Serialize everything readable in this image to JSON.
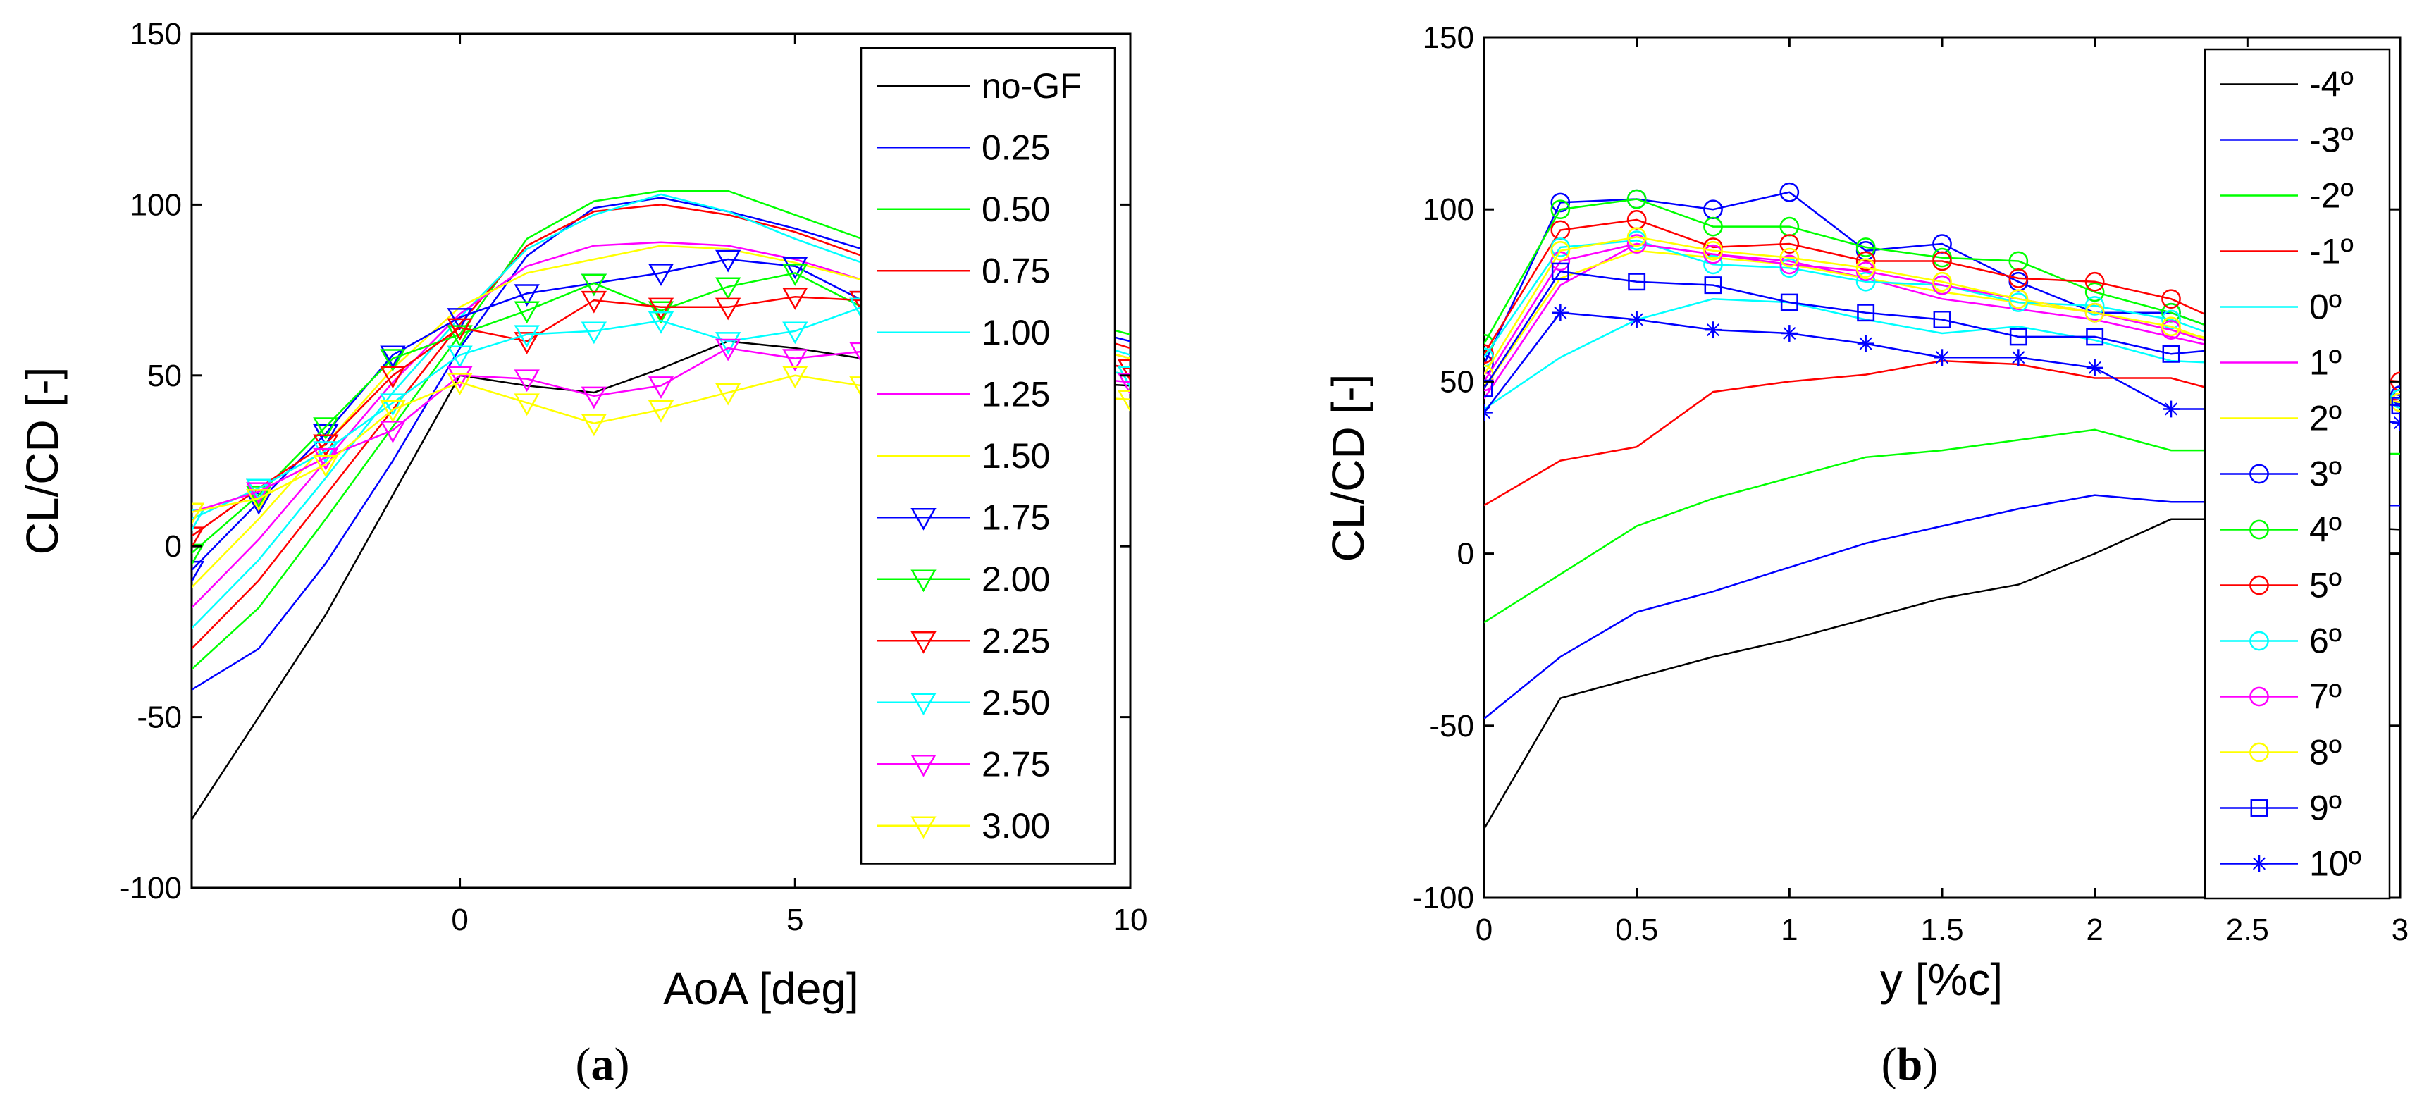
{
  "chart_data": [
    {
      "type": "line",
      "panel_label": "a",
      "xlabel": "AoA  [deg]",
      "ylabel": "CL/CD [-]",
      "xlim": [
        -4,
        10
      ],
      "ylim": [
        -100,
        150
      ],
      "xticks": [
        0,
        5,
        10
      ],
      "yticks": [
        -100,
        -50,
        0,
        50,
        100,
        150
      ],
      "x": [
        -4,
        -3,
        -2,
        -1,
        0,
        1,
        2,
        3,
        4,
        5,
        6,
        7,
        8,
        9,
        10
      ],
      "series": [
        {
          "name": "no-GF",
          "color": "#000000",
          "marker": "none",
          "values": [
            -80,
            -50,
            -20,
            15,
            50,
            47,
            45,
            52,
            60,
            58,
            55,
            52,
            50,
            48,
            47
          ]
        },
        {
          "name": "0.25",
          "color": "#0000ff",
          "marker": "none",
          "values": [
            -42,
            -30,
            -5,
            25,
            58,
            85,
            99,
            102,
            98,
            93,
            87,
            80,
            72,
            65,
            60
          ]
        },
        {
          "name": "0.50",
          "color": "#00ff00",
          "marker": "none",
          "values": [
            -36,
            -18,
            8,
            35,
            62,
            90,
            101,
            104,
            104,
            97,
            90,
            82,
            74,
            67,
            62
          ]
        },
        {
          "name": "0.75",
          "color": "#ff0000",
          "marker": "none",
          "values": [
            -30,
            -10,
            15,
            40,
            65,
            88,
            98,
            100,
            97,
            92,
            85,
            78,
            70,
            64,
            58
          ]
        },
        {
          "name": "1.00",
          "color": "#00ffff",
          "marker": "none",
          "values": [
            -24,
            -4,
            20,
            45,
            67,
            87,
            97,
            103,
            98,
            90,
            83,
            75,
            68,
            62,
            56
          ]
        },
        {
          "name": "1.25",
          "color": "#ff00ff",
          "marker": "none",
          "values": [
            -18,
            2,
            25,
            48,
            68,
            82,
            88,
            89,
            88,
            84,
            78,
            72,
            66,
            60,
            55
          ]
        },
        {
          "name": "1.50",
          "color": "#ffff00",
          "marker": "none",
          "values": [
            -12,
            8,
            30,
            52,
            70,
            80,
            84,
            88,
            87,
            83,
            78,
            72,
            66,
            60,
            55
          ]
        },
        {
          "name": "1.75",
          "color": "#0000ff",
          "marker": "triangle-down",
          "values": [
            -7,
            13,
            33,
            56,
            67,
            74,
            77,
            80,
            84,
            82,
            72,
            66,
            60,
            56,
            52
          ]
        },
        {
          "name": "2.00",
          "color": "#00ff00",
          "marker": "triangle-down",
          "values": [
            -2,
            15,
            35,
            55,
            62,
            69,
            77,
            69,
            76,
            80,
            70,
            64,
            58,
            54,
            50
          ]
        },
        {
          "name": "2.25",
          "color": "#ff0000",
          "marker": "triangle-down",
          "values": [
            3,
            17,
            30,
            50,
            64,
            60,
            72,
            70,
            70,
            73,
            72,
            66,
            60,
            56,
            52
          ]
        },
        {
          "name": "2.50",
          "color": "#00ffff",
          "marker": "triangle-down",
          "values": [
            8,
            17,
            28,
            42,
            56,
            62,
            63,
            66,
            60,
            63,
            70,
            64,
            58,
            54,
            50
          ]
        },
        {
          "name": "2.75",
          "color": "#ff00ff",
          "marker": "triangle-down",
          "values": [
            10,
            16,
            26,
            34,
            50,
            49,
            44,
            47,
            58,
            55,
            57,
            55,
            52,
            50,
            48
          ]
        },
        {
          "name": "3.00",
          "color": "#ffff00",
          "marker": "triangle-down",
          "values": [
            10,
            14,
            24,
            40,
            48,
            42,
            36,
            40,
            45,
            50,
            47,
            46,
            45,
            44,
            43
          ]
        }
      ]
    },
    {
      "type": "line",
      "panel_label": "b",
      "xlabel": "y  [%c]",
      "ylabel": "CL/CD [-]",
      "xlim": [
        0,
        3
      ],
      "ylim": [
        -100,
        150
      ],
      "xticks": [
        "0",
        "0.5",
        "1",
        "1.5",
        "2",
        "2.5",
        "3"
      ],
      "yticks": [
        -100,
        -50,
        0,
        50,
        100,
        150
      ],
      "x": [
        0,
        0.25,
        0.5,
        0.75,
        1,
        1.25,
        1.5,
        1.75,
        2,
        2.25,
        2.5,
        2.75,
        3
      ],
      "series": [
        {
          "name": "-4º",
          "color": "#000000",
          "marker": "none",
          "values": [
            -80,
            -42,
            -36,
            -30,
            -25,
            -19,
            -13,
            -9,
            0,
            10,
            10,
            8,
            7
          ]
        },
        {
          "name": "-3º",
          "color": "#0000ff",
          "marker": "none",
          "values": [
            -48,
            -30,
            -17,
            -11,
            -4,
            3,
            8,
            13,
            17,
            15,
            15,
            14,
            14
          ]
        },
        {
          "name": "-2º",
          "color": "#00ff00",
          "marker": "none",
          "values": [
            -20,
            -6,
            8,
            16,
            22,
            28,
            30,
            33,
            36,
            30,
            30,
            29,
            29
          ]
        },
        {
          "name": "-1º",
          "color": "#ff0000",
          "marker": "none",
          "values": [
            14,
            27,
            31,
            47,
            50,
            52,
            56,
            55,
            51,
            51,
            45,
            45,
            45
          ]
        },
        {
          "name": "0º",
          "color": "#00ffff",
          "marker": "none",
          "values": [
            42,
            57,
            68,
            74,
            73,
            68,
            64,
            66,
            62,
            56,
            55,
            45,
            44
          ]
        },
        {
          "name": "1º",
          "color": "#ff00ff",
          "marker": "none",
          "values": [
            45,
            78,
            90,
            87,
            85,
            80,
            74,
            71,
            68,
            63,
            58,
            48,
            45
          ]
        },
        {
          "name": "2º",
          "color": "#ffff00",
          "marker": "none",
          "values": [
            48,
            80,
            88,
            86,
            84,
            80,
            76,
            73,
            70,
            65,
            60,
            50,
            46
          ]
        },
        {
          "name": "3º",
          "color": "#0000ff",
          "marker": "circle",
          "values": [
            55,
            102,
            103,
            100,
            105,
            88,
            90,
            79,
            70,
            70,
            62,
            50,
            46
          ]
        },
        {
          "name": "4º",
          "color": "#00ff00",
          "marker": "circle",
          "values": [
            61,
            100,
            103,
            95,
            95,
            89,
            86,
            85,
            76,
            70,
            62,
            50,
            45
          ]
        },
        {
          "name": "5º",
          "color": "#ff0000",
          "marker": "circle",
          "values": [
            58,
            94,
            97,
            89,
            90,
            85,
            85,
            80,
            79,
            74,
            64,
            52,
            50
          ]
        },
        {
          "name": "6º",
          "color": "#00ffff",
          "marker": "circle",
          "values": [
            57,
            89,
            91,
            84,
            83,
            79,
            78,
            73,
            72,
            68,
            60,
            50,
            45
          ]
        },
        {
          "name": "7º",
          "color": "#ff00ff",
          "marker": "circle",
          "values": [
            50,
            85,
            90,
            87,
            84,
            82,
            78,
            74,
            70,
            65,
            58,
            48,
            44
          ]
        },
        {
          "name": "8º",
          "color": "#ffff00",
          "marker": "circle",
          "values": [
            52,
            88,
            92,
            88,
            86,
            83,
            79,
            74,
            70,
            66,
            58,
            47,
            44
          ]
        },
        {
          "name": "9º",
          "color": "#0000ff",
          "marker": "square",
          "values": [
            48,
            82,
            79,
            78,
            73,
            70,
            68,
            63,
            63,
            58,
            60,
            45,
            43
          ]
        },
        {
          "name": "10º",
          "color": "#0000ff",
          "marker": "star",
          "values": [
            41,
            70,
            68,
            65,
            64,
            61,
            57,
            57,
            54,
            42,
            42,
            40,
            38
          ]
        }
      ]
    }
  ]
}
